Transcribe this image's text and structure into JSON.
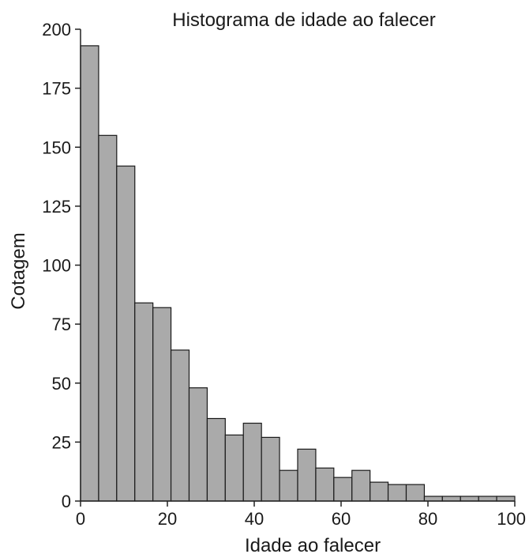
{
  "chart_data": {
    "type": "bar",
    "title": "Histograma de idade ao falecer",
    "xlabel": "Idade ao falecer",
    "ylabel": "Cotagem",
    "xlim": [
      0,
      100
    ],
    "ylim": [
      0,
      200
    ],
    "xticks": [
      "0",
      "20",
      "40",
      "60",
      "80",
      "100"
    ],
    "yticks": [
      "0",
      "25",
      "50",
      "75",
      "100",
      "125",
      "150",
      "175",
      "200"
    ],
    "bin_edges": [
      0,
      4.17,
      8.33,
      12.5,
      16.67,
      20.83,
      25,
      29.17,
      33.33,
      37.5,
      41.67,
      45.83,
      50,
      54.17,
      58.33,
      62.5,
      66.67,
      70.83,
      75,
      79.17,
      83.33,
      87.5,
      91.67,
      95.83,
      100
    ],
    "values": [
      193,
      155,
      142,
      84,
      82,
      64,
      48,
      35,
      28,
      33,
      27,
      13,
      22,
      14,
      10,
      13,
      8,
      7,
      7,
      2,
      2,
      2,
      2,
      2
    ],
    "bar_color": "#aaaaaa",
    "grid": false
  }
}
